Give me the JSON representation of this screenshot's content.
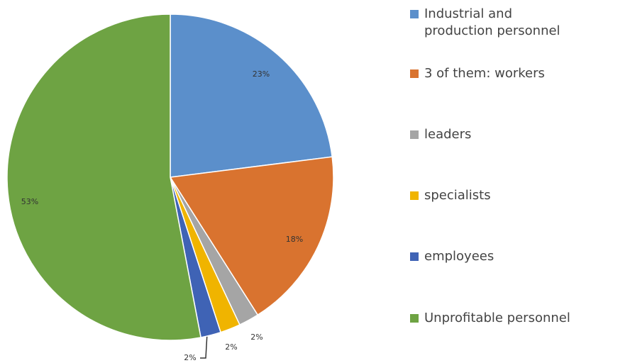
{
  "chart_data": {
    "type": "pie",
    "categories": [
      "Industrial and production personnel",
      "3 of them: workers",
      "leaders",
      "specialists",
      "employees",
      "Unprofitable personnel"
    ],
    "values": [
      23,
      18,
      2,
      2,
      2,
      53
    ],
    "value_labels": [
      "23%",
      "18%",
      "2%",
      "2%",
      "2%",
      "53%"
    ],
    "colors": [
      "#5b8fcb",
      "#d9732f",
      "#a5a5a5",
      "#f0b400",
      "#3f63b5",
      "#6ea343"
    ],
    "legend": "right"
  }
}
